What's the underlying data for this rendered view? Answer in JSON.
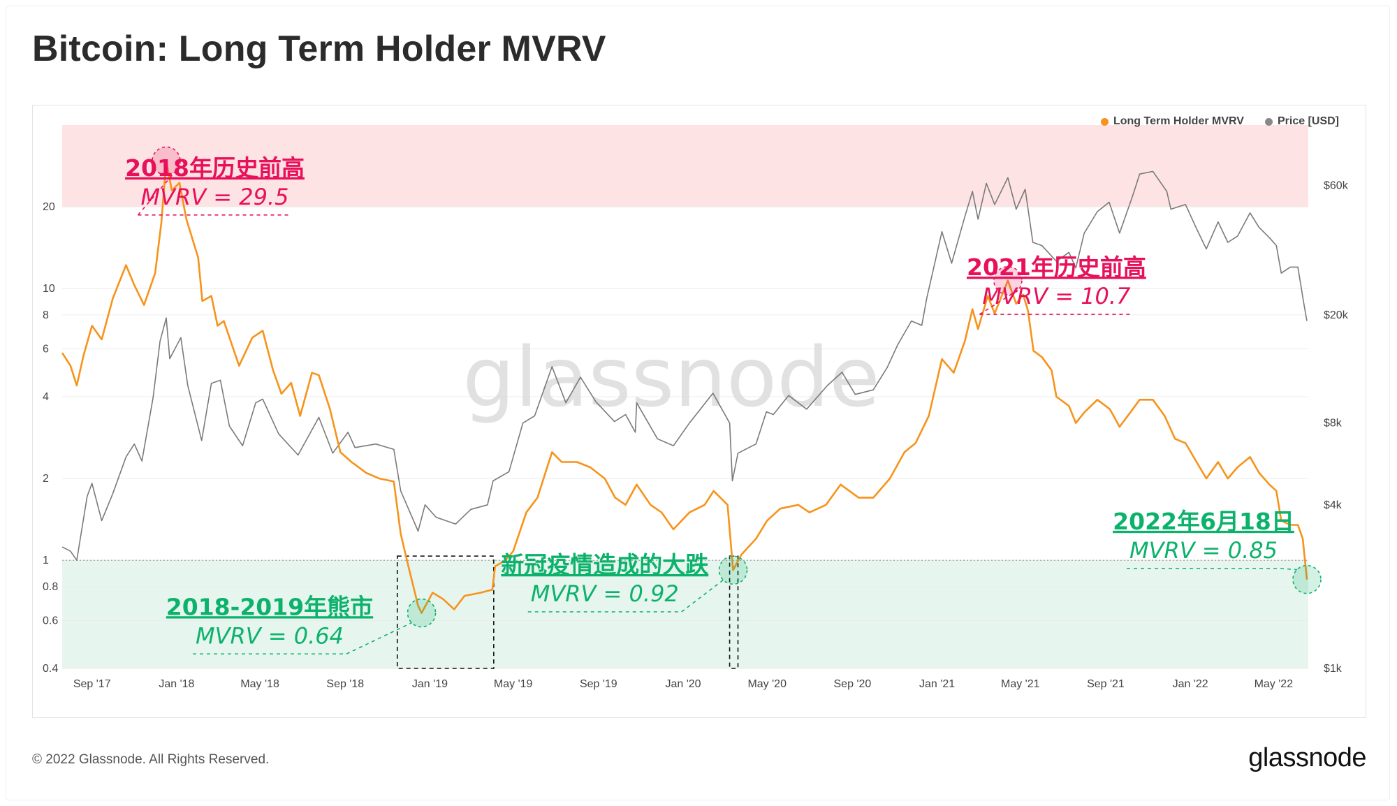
{
  "title": "Bitcoin: Long Term Holder MVRV",
  "footer": {
    "copyright": "© 2022 Glassnode. All Rights Reserved.",
    "logo": "glassnode"
  },
  "chart_data": {
    "type": "line",
    "watermark": "glassnode",
    "legend_position": "top-right",
    "grid": true,
    "x_ticks": [
      "Sep '17",
      "Jan '18",
      "May '18",
      "Sep '18",
      "Jan '19",
      "May '19",
      "Sep '19",
      "Jan '20",
      "May '20",
      "Sep '20",
      "Jan '21",
      "May '21",
      "Sep '21",
      "Jan '22",
      "May '22"
    ],
    "x_tick_dates": [
      "2017-09-01",
      "2018-01-01",
      "2018-05-01",
      "2018-09-01",
      "2019-01-01",
      "2019-05-01",
      "2019-09-01",
      "2020-01-01",
      "2020-05-01",
      "2020-09-01",
      "2021-01-01",
      "2021-05-01",
      "2021-09-01",
      "2022-01-01",
      "2022-05-01"
    ],
    "x_range": [
      "2017-07-20",
      "2022-06-20"
    ],
    "y_left": {
      "scale": "log",
      "range": [
        0.4,
        40
      ],
      "ticks": [
        0.4,
        0.6,
        0.8,
        1,
        2,
        4,
        6,
        8,
        10,
        20
      ]
    },
    "y_right": {
      "scale": "log",
      "range": [
        1000,
        100000
      ],
      "ticks": [
        1000,
        4000,
        8000,
        20000,
        60000
      ],
      "tick_labels": [
        "$1k",
        "$4k",
        "$8k",
        "$20k",
        "$60k"
      ]
    },
    "bands": [
      {
        "name": "high-zone",
        "y_from": 20,
        "y_to": 40,
        "color": "#fde3e4"
      },
      {
        "name": "low-zone",
        "y_from": 0.4,
        "y_to": 1,
        "color": "#e6f6ee"
      }
    ],
    "colors": {
      "mvrv": "#f7931a",
      "price": "#7a7a7a",
      "pink": "#e8105a",
      "green": "#0cb26b"
    },
    "series": [
      {
        "name": "Long Term Holder MVRV",
        "axis": "left",
        "color": "#f7931a",
        "points": [
          [
            "2017-07-20",
            5.8
          ],
          [
            "2017-08-01",
            5.2
          ],
          [
            "2017-08-10",
            4.4
          ],
          [
            "2017-08-20",
            5.7
          ],
          [
            "2017-09-01",
            7.3
          ],
          [
            "2017-09-15",
            6.5
          ],
          [
            "2017-10-01",
            9.2
          ],
          [
            "2017-10-20",
            12.2
          ],
          [
            "2017-11-01",
            10.3
          ],
          [
            "2017-11-15",
            8.7
          ],
          [
            "2017-12-01",
            11.4
          ],
          [
            "2017-12-10",
            17.5
          ],
          [
            "2017-12-17",
            29.5
          ],
          [
            "2017-12-25",
            23.0
          ],
          [
            "2018-01-05",
            24.5
          ],
          [
            "2018-01-15",
            18.0
          ],
          [
            "2018-02-01",
            13.0
          ],
          [
            "2018-02-07",
            9.0
          ],
          [
            "2018-02-20",
            9.4
          ],
          [
            "2018-03-01",
            7.3
          ],
          [
            "2018-03-10",
            7.6
          ],
          [
            "2018-04-01",
            5.2
          ],
          [
            "2018-04-20",
            6.6
          ],
          [
            "2018-05-05",
            7.0
          ],
          [
            "2018-05-20",
            5.0
          ],
          [
            "2018-06-01",
            4.1
          ],
          [
            "2018-06-15",
            4.5
          ],
          [
            "2018-06-28",
            3.4
          ],
          [
            "2018-07-15",
            4.9
          ],
          [
            "2018-07-25",
            4.8
          ],
          [
            "2018-08-10",
            3.6
          ],
          [
            "2018-08-25",
            2.5
          ],
          [
            "2018-09-10",
            2.3
          ],
          [
            "2018-10-01",
            2.1
          ],
          [
            "2018-10-20",
            2.0
          ],
          [
            "2018-11-10",
            1.95
          ],
          [
            "2018-11-20",
            1.25
          ],
          [
            "2018-12-01",
            0.95
          ],
          [
            "2018-12-15",
            0.68
          ],
          [
            "2018-12-20",
            0.64
          ],
          [
            "2019-01-05",
            0.76
          ],
          [
            "2019-01-20",
            0.72
          ],
          [
            "2019-02-05",
            0.66
          ],
          [
            "2019-02-20",
            0.74
          ],
          [
            "2019-03-15",
            0.76
          ],
          [
            "2019-04-01",
            0.78
          ],
          [
            "2019-04-05",
            0.95
          ],
          [
            "2019-04-20",
            1.0
          ],
          [
            "2019-05-01",
            1.08
          ],
          [
            "2019-05-20",
            1.5
          ],
          [
            "2019-06-05",
            1.7
          ],
          [
            "2019-06-26",
            2.5
          ],
          [
            "2019-07-10",
            2.3
          ],
          [
            "2019-08-01",
            2.3
          ],
          [
            "2019-08-20",
            2.2
          ],
          [
            "2019-09-10",
            2.0
          ],
          [
            "2019-09-25",
            1.7
          ],
          [
            "2019-10-10",
            1.6
          ],
          [
            "2019-10-26",
            1.9
          ],
          [
            "2019-11-15",
            1.6
          ],
          [
            "2019-12-01",
            1.5
          ],
          [
            "2019-12-18",
            1.3
          ],
          [
            "2020-01-10",
            1.5
          ],
          [
            "2020-02-01",
            1.6
          ],
          [
            "2020-02-14",
            1.8
          ],
          [
            "2020-03-05",
            1.6
          ],
          [
            "2020-03-13",
            0.92
          ],
          [
            "2020-03-25",
            1.05
          ],
          [
            "2020-04-15",
            1.2
          ],
          [
            "2020-05-01",
            1.4
          ],
          [
            "2020-05-20",
            1.55
          ],
          [
            "2020-06-15",
            1.6
          ],
          [
            "2020-07-01",
            1.5
          ],
          [
            "2020-07-25",
            1.6
          ],
          [
            "2020-08-15",
            1.9
          ],
          [
            "2020-09-10",
            1.7
          ],
          [
            "2020-10-01",
            1.7
          ],
          [
            "2020-10-25",
            2.0
          ],
          [
            "2020-11-15",
            2.5
          ],
          [
            "2020-12-01",
            2.7
          ],
          [
            "2020-12-20",
            3.4
          ],
          [
            "2021-01-08",
            5.5
          ],
          [
            "2021-01-25",
            4.9
          ],
          [
            "2021-02-10",
            6.4
          ],
          [
            "2021-02-21",
            8.4
          ],
          [
            "2021-03-01",
            7.1
          ],
          [
            "2021-03-15",
            9.4
          ],
          [
            "2021-03-25",
            8.1
          ],
          [
            "2021-04-13",
            10.7
          ],
          [
            "2021-04-25",
            8.8
          ],
          [
            "2021-05-05",
            9.5
          ],
          [
            "2021-05-12",
            8.3
          ],
          [
            "2021-05-20",
            5.9
          ],
          [
            "2021-06-01",
            5.6
          ],
          [
            "2021-06-15",
            5.0
          ],
          [
            "2021-06-22",
            4.0
          ],
          [
            "2021-07-10",
            3.7
          ],
          [
            "2021-07-20",
            3.2
          ],
          [
            "2021-08-01",
            3.5
          ],
          [
            "2021-08-20",
            3.9
          ],
          [
            "2021-09-07",
            3.6
          ],
          [
            "2021-09-21",
            3.1
          ],
          [
            "2021-10-10",
            3.6
          ],
          [
            "2021-10-20",
            3.9
          ],
          [
            "2021-11-08",
            3.9
          ],
          [
            "2021-11-25",
            3.4
          ],
          [
            "2021-12-10",
            2.8
          ],
          [
            "2021-12-25",
            2.7
          ],
          [
            "2022-01-10",
            2.3
          ],
          [
            "2022-01-24",
            2.0
          ],
          [
            "2022-02-10",
            2.3
          ],
          [
            "2022-02-24",
            2.0
          ],
          [
            "2022-03-10",
            2.2
          ],
          [
            "2022-03-28",
            2.4
          ],
          [
            "2022-04-10",
            2.1
          ],
          [
            "2022-04-25",
            1.9
          ],
          [
            "2022-05-05",
            1.8
          ],
          [
            "2022-05-12",
            1.4
          ],
          [
            "2022-05-25",
            1.35
          ],
          [
            "2022-06-05",
            1.35
          ],
          [
            "2022-06-12",
            1.2
          ],
          [
            "2022-06-18",
            0.85
          ]
        ]
      },
      {
        "name": "Price [USD]",
        "axis": "right",
        "color": "#7a7a7a",
        "points": [
          [
            "2017-07-20",
            2800
          ],
          [
            "2017-08-01",
            2700
          ],
          [
            "2017-08-10",
            2500
          ],
          [
            "2017-08-25",
            4300
          ],
          [
            "2017-09-01",
            4800
          ],
          [
            "2017-09-15",
            3500
          ],
          [
            "2017-10-01",
            4400
          ],
          [
            "2017-10-20",
            6000
          ],
          [
            "2017-11-01",
            6700
          ],
          [
            "2017-11-12",
            5800
          ],
          [
            "2017-11-28",
            9900
          ],
          [
            "2017-12-08",
            16000
          ],
          [
            "2017-12-17",
            19500
          ],
          [
            "2017-12-22",
            13800
          ],
          [
            "2018-01-07",
            16500
          ],
          [
            "2018-01-17",
            11000
          ],
          [
            "2018-02-06",
            6900
          ],
          [
            "2018-02-20",
            11200
          ],
          [
            "2018-03-05",
            11500
          ],
          [
            "2018-03-18",
            7800
          ],
          [
            "2018-04-06",
            6600
          ],
          [
            "2018-04-25",
            9500
          ],
          [
            "2018-05-05",
            9800
          ],
          [
            "2018-05-28",
            7300
          ],
          [
            "2018-06-25",
            6100
          ],
          [
            "2018-07-25",
            8400
          ],
          [
            "2018-08-14",
            6200
          ],
          [
            "2018-09-05",
            7400
          ],
          [
            "2018-09-15",
            6500
          ],
          [
            "2018-10-15",
            6700
          ],
          [
            "2018-11-10",
            6400
          ],
          [
            "2018-11-20",
            4500
          ],
          [
            "2018-12-15",
            3200
          ],
          [
            "2018-12-25",
            4000
          ],
          [
            "2019-01-10",
            3600
          ],
          [
            "2019-02-07",
            3400
          ],
          [
            "2019-03-01",
            3850
          ],
          [
            "2019-03-25",
            4000
          ],
          [
            "2019-04-02",
            4900
          ],
          [
            "2019-04-25",
            5300
          ],
          [
            "2019-05-15",
            8000
          ],
          [
            "2019-06-01",
            8500
          ],
          [
            "2019-06-26",
            12900
          ],
          [
            "2019-07-16",
            9500
          ],
          [
            "2019-08-06",
            11800
          ],
          [
            "2019-08-28",
            9600
          ],
          [
            "2019-09-24",
            8100
          ],
          [
            "2019-10-10",
            8600
          ],
          [
            "2019-10-24",
            7400
          ],
          [
            "2019-10-26",
            9500
          ],
          [
            "2019-11-25",
            7000
          ],
          [
            "2019-12-18",
            6600
          ],
          [
            "2020-01-10",
            8000
          ],
          [
            "2020-02-13",
            10300
          ],
          [
            "2020-03-08",
            8000
          ],
          [
            "2020-03-12",
            4900
          ],
          [
            "2020-03-20",
            6200
          ],
          [
            "2020-04-15",
            6700
          ],
          [
            "2020-04-30",
            8800
          ],
          [
            "2020-05-10",
            8600
          ],
          [
            "2020-06-01",
            10100
          ],
          [
            "2020-06-27",
            9000
          ],
          [
            "2020-07-27",
            11000
          ],
          [
            "2020-08-17",
            12300
          ],
          [
            "2020-09-05",
            10200
          ],
          [
            "2020-10-01",
            10600
          ],
          [
            "2020-10-21",
            12800
          ],
          [
            "2020-11-05",
            15500
          ],
          [
            "2020-11-25",
            19000
          ],
          [
            "2020-12-10",
            18300
          ],
          [
            "2020-12-17",
            23000
          ],
          [
            "2021-01-08",
            40500
          ],
          [
            "2021-01-22",
            31000
          ],
          [
            "2021-02-10",
            46000
          ],
          [
            "2021-02-21",
            57000
          ],
          [
            "2021-03-01",
            45000
          ],
          [
            "2021-03-13",
            61000
          ],
          [
            "2021-03-25",
            51000
          ],
          [
            "2021-04-13",
            64000
          ],
          [
            "2021-04-25",
            49000
          ],
          [
            "2021-05-08",
            58000
          ],
          [
            "2021-05-19",
            37000
          ],
          [
            "2021-06-01",
            36000
          ],
          [
            "2021-06-22",
            31500
          ],
          [
            "2021-07-10",
            34000
          ],
          [
            "2021-07-20",
            29800
          ],
          [
            "2021-08-01",
            40000
          ],
          [
            "2021-08-20",
            48000
          ],
          [
            "2021-09-06",
            52000
          ],
          [
            "2021-09-21",
            40000
          ],
          [
            "2021-10-10",
            55000
          ],
          [
            "2021-10-20",
            66000
          ],
          [
            "2021-11-08",
            67500
          ],
          [
            "2021-11-28",
            57000
          ],
          [
            "2021-12-04",
            49000
          ],
          [
            "2021-12-25",
            51000
          ],
          [
            "2022-01-10",
            41500
          ],
          [
            "2022-01-24",
            35000
          ],
          [
            "2022-02-10",
            44000
          ],
          [
            "2022-02-24",
            37000
          ],
          [
            "2022-03-10",
            39000
          ],
          [
            "2022-03-28",
            47500
          ],
          [
            "2022-04-10",
            42000
          ],
          [
            "2022-04-25",
            38500
          ],
          [
            "2022-05-05",
            36000
          ],
          [
            "2022-05-12",
            28500
          ],
          [
            "2022-05-25",
            30000
          ],
          [
            "2022-06-05",
            30000
          ],
          [
            "2022-06-13",
            22500
          ],
          [
            "2022-06-18",
            19000
          ]
        ]
      }
    ],
    "annotations": [
      {
        "name": "2018-top",
        "headline": "2018年历史前高",
        "subline": "MVRV = 29.5",
        "color": "#e8105a",
        "point": [
          "2017-12-17",
          29.5
        ],
        "text_anchor": [
          "2018-02-25",
          26.0
        ]
      },
      {
        "name": "2021-top",
        "headline": "2021年历史前高",
        "subline": "MVRV = 10.7",
        "color": "#e8105a",
        "point": [
          "2021-04-13",
          10.7
        ],
        "text_anchor": [
          "2021-06-22",
          11.2
        ]
      },
      {
        "name": "bear-2018-2019",
        "headline": "2018-2019年熊市",
        "subline": "MVRV = 0.64",
        "color": "#0cb26b",
        "point": [
          "2018-12-20",
          0.64
        ],
        "text_anchor": [
          "2018-05-15",
          0.63
        ]
      },
      {
        "name": "covid-crash",
        "headline": "新冠疫情造成的大跌",
        "subline": "MVRV = 0.92",
        "color": "#0cb26b",
        "point": [
          "2020-03-13",
          0.92
        ],
        "text_anchor": [
          "2019-09-10",
          0.9
        ]
      },
      {
        "name": "june-2022",
        "headline": "2022年6月18日",
        "subline": "MVRV = 0.85",
        "color": "#0cb26b",
        "point": [
          "2022-06-18",
          0.85
        ],
        "text_anchor": [
          "2022-01-20",
          1.3
        ]
      }
    ],
    "highlight_boxes": [
      {
        "name": "bear-box",
        "x_from": "2018-11-15",
        "x_to": "2019-04-03",
        "y_from": 0.4,
        "y_to": 1.0
      },
      {
        "name": "covid-box",
        "x_from": "2020-03-08",
        "x_to": "2020-03-20",
        "y_from": 0.4,
        "y_to": 1.0
      }
    ],
    "series_legend": [
      {
        "label": "Long Term Holder MVRV",
        "color": "#f7931a"
      },
      {
        "label": "Price [USD]",
        "color": "#888888"
      }
    ]
  }
}
